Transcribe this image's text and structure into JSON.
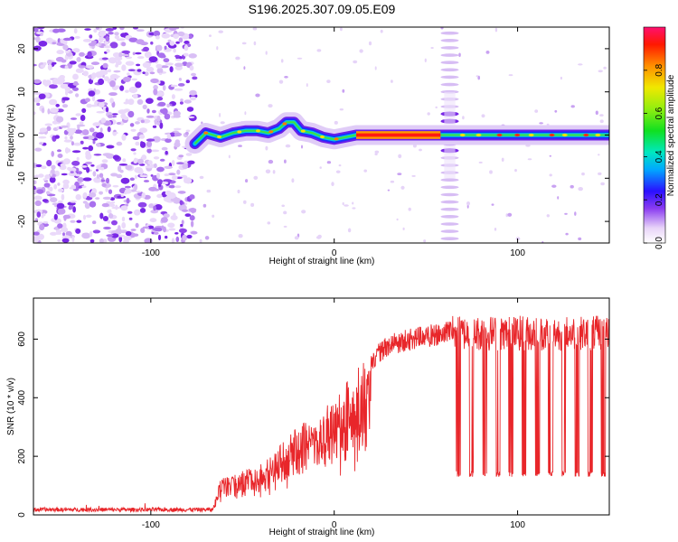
{
  "title": "S196.2025.307.09.05.E09",
  "chart_data": [
    {
      "type": "heatmap",
      "name": "spectrogram",
      "xlabel": "Height of straight line (km)",
      "ylabel": "Frequency (Hz)",
      "xlim": [
        -164,
        150
      ],
      "ylim": [
        -25,
        25
      ],
      "xticks": [
        -100,
        0,
        100
      ],
      "yticks": [
        -20,
        -10,
        0,
        10,
        20
      ],
      "colorbar": {
        "label": "Normalized spectral amplitude",
        "range": [
          0,
          1
        ],
        "ticks": [
          0.0,
          0.2,
          0.4,
          0.6,
          0.8
        ]
      },
      "features": {
        "noise_region_x": [
          -164,
          -76
        ],
        "signal_track": [
          [
            -76,
            -2
          ],
          [
            -70,
            0.5
          ],
          [
            -62,
            -0.5
          ],
          [
            -55,
            0.5
          ],
          [
            -48,
            1
          ],
          [
            -42,
            1
          ],
          [
            -36,
            0.5
          ],
          [
            -30,
            1.5
          ],
          [
            -26,
            3
          ],
          [
            -22,
            3
          ],
          [
            -18,
            1
          ],
          [
            -12,
            0.5
          ],
          [
            -6,
            -0.5
          ],
          [
            0,
            -1
          ],
          [
            6,
            -0.5
          ],
          [
            12,
            0
          ],
          [
            60,
            0
          ],
          [
            150,
            0
          ]
        ],
        "strong_carrier_x": [
          12,
          58
        ],
        "side_band_x": [
          60,
          66
        ]
      }
    },
    {
      "type": "line",
      "name": "snr",
      "xlabel": "Height of straight line (km)",
      "ylabel": "SNR (10 * v/v)",
      "xlim": [
        -164,
        150
      ],
      "ylim": [
        0,
        740
      ],
      "xticks": [
        -100,
        0,
        100
      ],
      "yticks": [
        0,
        200,
        400,
        600
      ],
      "color": "#e8262a",
      "trend": {
        "x": [
          -164,
          -80,
          -66,
          -62,
          -55,
          -45,
          -35,
          -20,
          -10,
          0,
          10,
          20,
          30,
          45,
          60,
          66
        ],
        "y": [
          20,
          20,
          25,
          130,
          140,
          160,
          200,
          300,
          340,
          400,
          480,
          560,
          620,
          640,
          660,
          680
        ]
      },
      "dropout_region_x": [
        64,
        150
      ],
      "dropout_floor": 130
    }
  ]
}
